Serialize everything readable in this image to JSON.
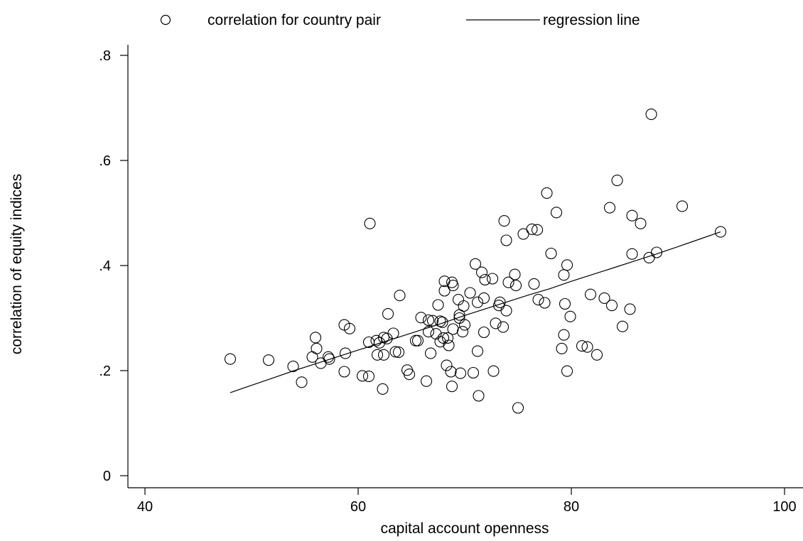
{
  "chart_data": {
    "type": "scatter",
    "title": "",
    "xlabel": "capital account openness",
    "ylabel": "correlation of equity indices",
    "xlim": [
      38,
      103
    ],
    "ylim": [
      -0.025,
      0.825
    ],
    "x_ticks": [
      {
        "value": 40,
        "label": "40"
      },
      {
        "value": 60,
        "label": "60"
      },
      {
        "value": 80,
        "label": "80"
      },
      {
        "value": 100,
        "label": "100"
      }
    ],
    "y_ticks": [
      {
        "value": 0,
        "label": "0"
      },
      {
        "value": 0.2,
        "label": ".2"
      },
      {
        "value": 0.4,
        "label": ".4"
      },
      {
        "value": 0.6,
        "label": ".6"
      },
      {
        "value": 0.8,
        "label": ".8"
      }
    ],
    "grid": false,
    "legend_position": "top",
    "legend": [
      {
        "label": "correlation for country pair",
        "marker": "hollow-circle"
      },
      {
        "label": "regression line",
        "marker": "line"
      }
    ],
    "series": [
      {
        "name": "correlation for country pair",
        "kind": "scatter",
        "points": [
          [
            48.0,
            0.222
          ],
          [
            51.6,
            0.22
          ],
          [
            53.9,
            0.208
          ],
          [
            54.7,
            0.178
          ],
          [
            55.7,
            0.226
          ],
          [
            56.0,
            0.263
          ],
          [
            56.1,
            0.242
          ],
          [
            56.5,
            0.214
          ],
          [
            57.2,
            0.226
          ],
          [
            57.3,
            0.222
          ],
          [
            58.7,
            0.287
          ],
          [
            58.7,
            0.198
          ],
          [
            58.8,
            0.233
          ],
          [
            59.2,
            0.28
          ],
          [
            60.4,
            0.19
          ],
          [
            61.0,
            0.254
          ],
          [
            61.0,
            0.189
          ],
          [
            61.1,
            0.48
          ],
          [
            61.7,
            0.257
          ],
          [
            61.8,
            0.23
          ],
          [
            62.0,
            0.253
          ],
          [
            62.3,
            0.165
          ],
          [
            62.4,
            0.263
          ],
          [
            62.4,
            0.23
          ],
          [
            62.7,
            0.261
          ],
          [
            62.8,
            0.308
          ],
          [
            63.3,
            0.271
          ],
          [
            63.5,
            0.236
          ],
          [
            63.8,
            0.235
          ],
          [
            63.9,
            0.343
          ],
          [
            64.6,
            0.201
          ],
          [
            64.8,
            0.193
          ],
          [
            65.4,
            0.257
          ],
          [
            65.6,
            0.257
          ],
          [
            65.9,
            0.301
          ],
          [
            66.4,
            0.18
          ],
          [
            66.6,
            0.296
          ],
          [
            66.6,
            0.274
          ],
          [
            66.8,
            0.233
          ],
          [
            67.0,
            0.295
          ],
          [
            67.3,
            0.27
          ],
          [
            67.5,
            0.325
          ],
          [
            67.7,
            0.255
          ],
          [
            67.7,
            0.294
          ],
          [
            67.9,
            0.292
          ],
          [
            68.0,
            0.262
          ],
          [
            68.1,
            0.37
          ],
          [
            68.1,
            0.352
          ],
          [
            68.3,
            0.21
          ],
          [
            68.4,
            0.262
          ],
          [
            68.5,
            0.248
          ],
          [
            68.7,
            0.198
          ],
          [
            68.8,
            0.17
          ],
          [
            68.8,
            0.368
          ],
          [
            68.9,
            0.362
          ],
          [
            68.9,
            0.279
          ],
          [
            69.4,
            0.335
          ],
          [
            69.5,
            0.306
          ],
          [
            69.5,
            0.3
          ],
          [
            69.6,
            0.195
          ],
          [
            69.8,
            0.274
          ],
          [
            69.9,
            0.323
          ],
          [
            70.0,
            0.287
          ],
          [
            70.5,
            0.348
          ],
          [
            70.8,
            0.196
          ],
          [
            71.0,
            0.403
          ],
          [
            71.2,
            0.237
          ],
          [
            71.2,
            0.33
          ],
          [
            71.3,
            0.152
          ],
          [
            71.6,
            0.387
          ],
          [
            71.8,
            0.338
          ],
          [
            71.8,
            0.273
          ],
          [
            71.9,
            0.373
          ],
          [
            72.6,
            0.375
          ],
          [
            72.7,
            0.199
          ],
          [
            72.9,
            0.29
          ],
          [
            73.2,
            0.324
          ],
          [
            73.3,
            0.33
          ],
          [
            73.6,
            0.283
          ],
          [
            73.7,
            0.485
          ],
          [
            73.9,
            0.314
          ],
          [
            73.9,
            0.448
          ],
          [
            74.1,
            0.368
          ],
          [
            74.7,
            0.383
          ],
          [
            74.8,
            0.362
          ],
          [
            75.0,
            0.129
          ],
          [
            75.5,
            0.46
          ],
          [
            76.3,
            0.469
          ],
          [
            76.5,
            0.365
          ],
          [
            76.8,
            0.468
          ],
          [
            76.9,
            0.335
          ],
          [
            77.5,
            0.329
          ],
          [
            77.7,
            0.538
          ],
          [
            78.1,
            0.423
          ],
          [
            78.6,
            0.501
          ],
          [
            79.1,
            0.242
          ],
          [
            79.3,
            0.382
          ],
          [
            79.3,
            0.268
          ],
          [
            79.4,
            0.327
          ],
          [
            79.6,
            0.401
          ],
          [
            79.6,
            0.199
          ],
          [
            79.9,
            0.303
          ],
          [
            81.0,
            0.247
          ],
          [
            81.5,
            0.245
          ],
          [
            81.8,
            0.345
          ],
          [
            82.4,
            0.23
          ],
          [
            83.1,
            0.338
          ],
          [
            83.6,
            0.51
          ],
          [
            83.8,
            0.324
          ],
          [
            84.3,
            0.562
          ],
          [
            84.8,
            0.284
          ],
          [
            85.5,
            0.317
          ],
          [
            85.7,
            0.495
          ],
          [
            85.7,
            0.422
          ],
          [
            86.5,
            0.48
          ],
          [
            87.3,
            0.415
          ],
          [
            87.5,
            0.688
          ],
          [
            88.0,
            0.425
          ],
          [
            90.4,
            0.513
          ],
          [
            94.0,
            0.464
          ]
        ]
      },
      {
        "name": "regression line",
        "kind": "line",
        "points": [
          [
            48.0,
            0.158
          ],
          [
            50.0,
            0.172
          ],
          [
            52.0,
            0.186
          ],
          [
            54.0,
            0.2
          ],
          [
            56.0,
            0.213
          ],
          [
            58.0,
            0.226
          ],
          [
            60.0,
            0.239
          ],
          [
            62.0,
            0.252
          ],
          [
            64.0,
            0.265
          ],
          [
            66.0,
            0.278
          ],
          [
            68.0,
            0.291
          ],
          [
            70.0,
            0.305
          ],
          [
            72.0,
            0.318
          ],
          [
            74.0,
            0.331
          ],
          [
            76.0,
            0.344
          ],
          [
            78.0,
            0.356
          ],
          [
            80.0,
            0.37
          ],
          [
            82.0,
            0.383
          ],
          [
            84.0,
            0.396
          ],
          [
            86.0,
            0.409
          ],
          [
            88.0,
            0.422
          ],
          [
            90.0,
            0.436
          ],
          [
            92.0,
            0.45
          ],
          [
            94.0,
            0.464
          ]
        ]
      }
    ]
  }
}
